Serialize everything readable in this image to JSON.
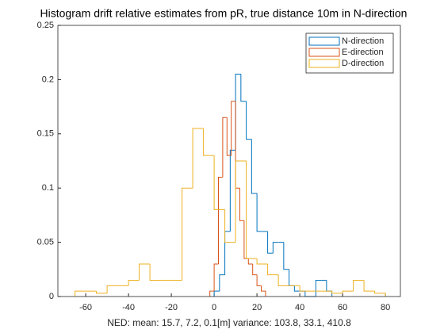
{
  "chart_data": {
    "type": "histogram",
    "title": "Histogram drift relative estimates from pR, true distance 10m in N-direction",
    "x_label": "NED: mean: 15.7, 7.2, 0.1[m] variance: 103.8, 33.1, 410.8",
    "xlim": [
      -73,
      87
    ],
    "xticks": [
      -60,
      -40,
      -20,
      0,
      20,
      40,
      60,
      80
    ],
    "ylim": [
      0,
      0.25
    ],
    "yticks": [
      0,
      0.05,
      0.1,
      0.15,
      0.2,
      0.25
    ],
    "legend": "northeast",
    "series": [
      {
        "name": "N-direction",
        "color": "#0072BD",
        "bins": [
          0,
          2.5,
          5,
          7.5,
          10,
          12.5,
          15,
          17.5,
          20,
          22.5,
          25,
          27.5,
          30,
          32.5,
          35,
          37.5,
          40,
          42.5,
          45,
          47.5,
          50,
          52.5,
          55
        ],
        "values": [
          0.005,
          0.02,
          0.06,
          0.135,
          0.205,
          0.18,
          0.145,
          0.095,
          0.06,
          0.06,
          0.04,
          0.05,
          0.05,
          0.025,
          0.01,
          0.005,
          0.005,
          0,
          0,
          0.015,
          0.015,
          0.005
        ]
      },
      {
        "name": "E-direction",
        "color": "#D95319",
        "bins": [
          -2,
          0,
          2,
          4,
          6,
          8,
          10,
          12,
          14,
          16,
          18,
          20,
          22,
          24
        ],
        "values": [
          0.005,
          0.03,
          0.11,
          0.165,
          0.13,
          0.18,
          0.1,
          0.07,
          0.035,
          0.03,
          0.02,
          0.01,
          0.005
        ]
      },
      {
        "name": "D-direction",
        "color": "#EDB120",
        "bins": [
          -65,
          -60,
          -55,
          -50,
          -45,
          -40,
          -35,
          -30,
          -25,
          -20,
          -15,
          -10,
          -5,
          0,
          5,
          10,
          15,
          20,
          25,
          30,
          35,
          40,
          45,
          50,
          55,
          60,
          65,
          70,
          75,
          80
        ],
        "values": [
          0.005,
          0.005,
          0.003,
          0.01,
          0.01,
          0.015,
          0.03,
          0.015,
          0.015,
          0.015,
          0.1,
          0.155,
          0.13,
          0.08,
          0.05,
          0.125,
          0.035,
          0.03,
          0.02,
          0.01,
          0.01,
          0.005,
          0.005,
          0.005,
          0.003,
          0.005,
          0.015,
          0.005,
          0.003
        ]
      }
    ]
  }
}
